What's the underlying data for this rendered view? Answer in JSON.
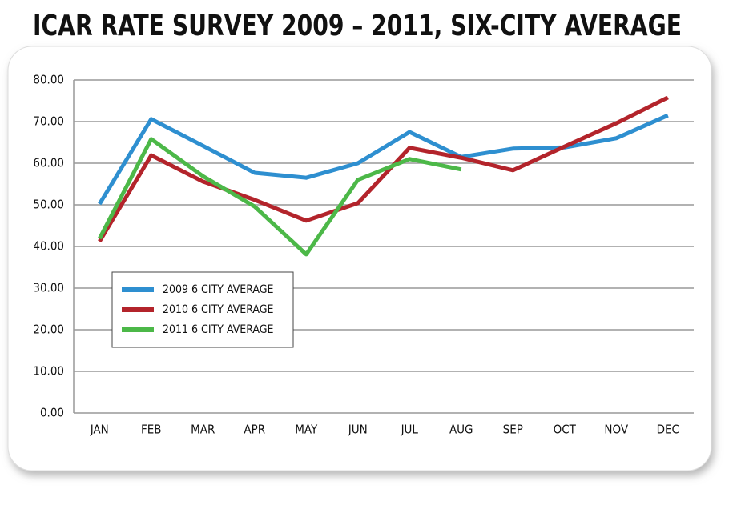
{
  "chart_data": {
    "type": "line",
    "title": "ICAR RATE SURVEY 2009 – 2011, SIX-CITY AVERAGE",
    "categories": [
      "JAN",
      "FEB",
      "MAR",
      "APR",
      "MAY",
      "JUN",
      "JUL",
      "AUG",
      "SEP",
      "OCT",
      "NOV",
      "DEC"
    ],
    "series": [
      {
        "name": "2009 6 CITY AVERAGE",
        "color": "#2e8fd0",
        "values": [
          50.2,
          70.6,
          64.2,
          57.7,
          56.5,
          60.0,
          67.5,
          61.5,
          63.5,
          63.8,
          66.0,
          71.5
        ]
      },
      {
        "name": "2010 6 CITY AVERAGE",
        "color": "#b3242b",
        "values": [
          41.2,
          61.9,
          55.6,
          51.2,
          46.2,
          50.4,
          63.7,
          61.3,
          58.3,
          64.0,
          69.6,
          75.8
        ]
      },
      {
        "name": "2011 6 CITY AVERAGE",
        "color": "#4cb848",
        "values": [
          41.9,
          65.8,
          56.9,
          49.6,
          38.1,
          56.0,
          61.0,
          58.5,
          null,
          null,
          null,
          null
        ]
      }
    ],
    "ylim": [
      0,
      80
    ],
    "yticks": [
      {
        "value": 0,
        "label": "0.00"
      },
      {
        "value": 10,
        "label": "10.00"
      },
      {
        "value": 20,
        "label": "20.00"
      },
      {
        "value": 30,
        "label": "30.00"
      },
      {
        "value": 40,
        "label": "40.00"
      },
      {
        "value": 50,
        "label": "50.00"
      },
      {
        "value": 60,
        "label": "60.00"
      },
      {
        "value": 70,
        "label": "70.00"
      },
      {
        "value": 80,
        "label": "80.00"
      }
    ],
    "grid": true
  }
}
